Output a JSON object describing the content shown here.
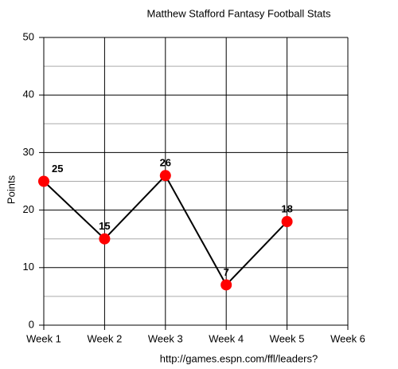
{
  "chart_data": {
    "type": "line",
    "title": "Matthew Stafford Fantasy Football Stats",
    "y_label": "Points",
    "source": "http://games.espn.com/ffl/leaders?",
    "categories": [
      "Week 1",
      "Week 2",
      "Week 3",
      "Week 4",
      "Week 5",
      "Week 6"
    ],
    "series": [
      {
        "name": "Points",
        "color": "#ff0000",
        "values": [
          25,
          15,
          26,
          7,
          18,
          null
        ]
      }
    ],
    "ylim": [
      0,
      50
    ],
    "yticks": [
      0,
      10,
      20,
      30,
      40,
      50
    ],
    "grid": true,
    "minor_grid": true
  }
}
